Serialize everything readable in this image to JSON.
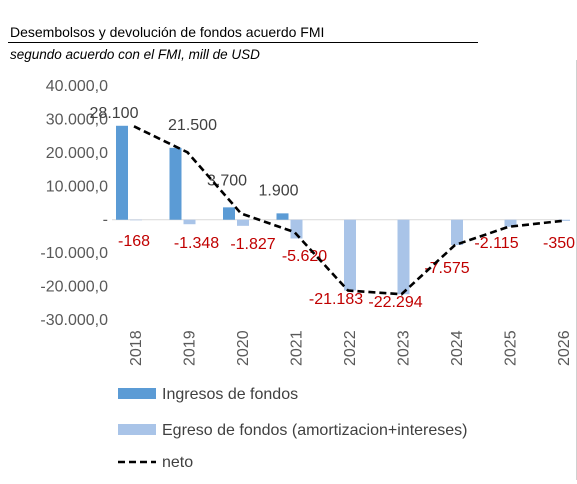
{
  "header": {
    "title": "Desembolsos y devolución de fondos acuerdo FMI",
    "subtitle": "segundo acuerdo con el FMI, mill de USD"
  },
  "chart_data": {
    "type": "bar",
    "categories": [
      "2018",
      "2019",
      "2020",
      "2021",
      "2022",
      "2023",
      "2024",
      "2025",
      "2026"
    ],
    "series": [
      {
        "name": "Ingresos de fondos",
        "kind": "bar",
        "color": "#5b9bd5",
        "values": [
          28100,
          21500,
          3700,
          1900,
          0,
          0,
          0,
          0,
          0
        ],
        "data_labels": [
          "28.100",
          "21.500",
          "3.700",
          "1.900",
          "",
          "",
          "",
          "",
          ""
        ]
      },
      {
        "name": "Egreso de fondos (amortizacion+intereses)",
        "kind": "bar",
        "color": "#a9c4e8",
        "values": [
          -168,
          -1348,
          -1827,
          -5620,
          -21183,
          -22294,
          -7575,
          -2115,
          -350
        ],
        "data_labels": [
          "-168",
          "-1.348",
          "-1.827",
          "-5.620",
          "-21.183",
          "-22.294",
          "-7.575",
          "-2.115",
          "-350"
        ]
      },
      {
        "name": "neto",
        "kind": "line",
        "color": "#000000",
        "values": [
          27932,
          20152,
          1873,
          -3720,
          -21183,
          -22294,
          -7575,
          -2115,
          -350
        ]
      }
    ],
    "yticks": [
      "40.000,0",
      "30.000,0",
      "20.000,0",
      "10.000,0",
      "-",
      "-10.000,0",
      "-20.000,0",
      "-30.000,0"
    ],
    "ylim": [
      -30000,
      40000
    ],
    "xlabel": "",
    "ylabel": "",
    "grid": false,
    "legend_position": "bottom"
  }
}
